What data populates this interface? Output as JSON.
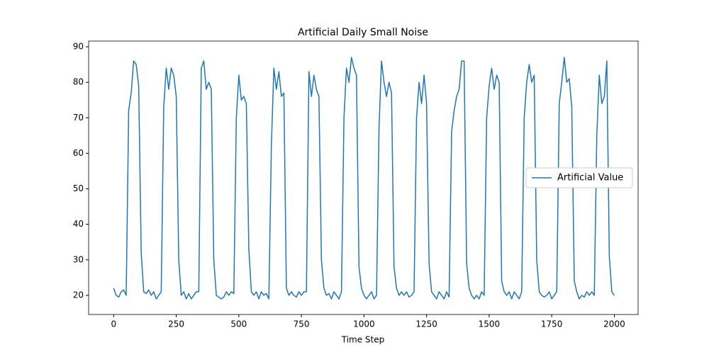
{
  "chart_data": {
    "type": "line",
    "title": "Artificial Daily Small Noise",
    "xlabel": "Time Step",
    "x": [
      0,
      10,
      20,
      30,
      40,
      50,
      60,
      70,
      80,
      90,
      100,
      110,
      120,
      130,
      140,
      150,
      160,
      170,
      180,
      190,
      200,
      210,
      220,
      230,
      240,
      250,
      260,
      270,
      280,
      290,
      300,
      310,
      320,
      330,
      340,
      350,
      360,
      370,
      380,
      390,
      400,
      410,
      420,
      430,
      440,
      450,
      460,
      470,
      480,
      490,
      500,
      510,
      520,
      530,
      540,
      550,
      560,
      570,
      580,
      590,
      600,
      610,
      620,
      630,
      640,
      650,
      660,
      670,
      680,
      690,
      700,
      710,
      720,
      730,
      740,
      750,
      760,
      770,
      780,
      790,
      800,
      810,
      820,
      830,
      840,
      850,
      860,
      870,
      880,
      890,
      900,
      910,
      920,
      930,
      940,
      950,
      960,
      970,
      980,
      990,
      1000,
      1010,
      1020,
      1030,
      1040,
      1050,
      1060,
      1070,
      1080,
      1090,
      1100,
      1110,
      1120,
      1130,
      1140,
      1150,
      1160,
      1170,
      1180,
      1190,
      1200,
      1210,
      1220,
      1230,
      1240,
      1250,
      1260,
      1270,
      1280,
      1290,
      1300,
      1310,
      1320,
      1330,
      1340,
      1350,
      1360,
      1370,
      1380,
      1390,
      1400,
      1410,
      1420,
      1430,
      1440,
      1450,
      1460,
      1470,
      1480,
      1490,
      1500,
      1510,
      1520,
      1530,
      1540,
      1550,
      1560,
      1570,
      1580,
      1590,
      1600,
      1610,
      1620,
      1630,
      1640,
      1650,
      1660,
      1670,
      1680,
      1690,
      1700,
      1710,
      1720,
      1730,
      1740,
      1750,
      1760,
      1770,
      1780,
      1790,
      1800,
      1810,
      1820,
      1830,
      1840,
      1850,
      1860,
      1870,
      1880,
      1890,
      1900,
      1910,
      1920,
      1930,
      1940,
      1950,
      1960,
      1970,
      1980,
      1990,
      2000
    ],
    "series": [
      {
        "name": "Artificial Value",
        "color": "#1f77b4",
        "values": [
          22,
          20,
          19.5,
          21,
          21.5,
          20,
          72,
          77,
          86,
          85,
          79,
          32,
          21,
          20.5,
          21.5,
          20,
          21,
          19,
          20,
          21,
          73,
          84,
          78,
          84,
          82,
          76,
          30,
          20,
          21,
          19,
          20.5,
          19,
          20,
          21,
          21,
          84,
          86,
          78,
          80,
          78,
          30,
          20,
          19.5,
          19,
          19.5,
          21,
          20,
          21,
          20.5,
          70,
          82,
          75,
          76,
          74,
          33,
          21,
          20,
          21,
          19,
          21,
          20,
          20.5,
          19,
          62,
          84,
          78,
          83,
          76,
          77,
          22,
          20,
          21,
          20,
          19.5,
          21,
          20,
          21,
          21,
          83,
          76,
          82,
          78,
          76,
          30,
          22,
          20,
          20.5,
          19,
          21,
          20,
          19,
          21,
          70,
          84,
          80,
          87,
          84,
          82,
          28,
          22,
          20,
          19,
          20,
          21,
          19,
          20,
          67,
          86,
          80,
          76,
          80,
          77,
          28,
          22,
          20,
          21,
          20,
          21,
          19.5,
          20,
          21,
          70,
          80,
          74,
          82,
          74,
          29,
          21,
          20,
          19,
          21,
          20,
          19,
          21,
          19.5,
          66,
          72,
          76,
          78,
          86,
          86,
          29,
          22,
          20,
          19,
          20,
          19,
          21,
          20,
          70,
          79,
          84,
          78,
          82,
          80,
          24,
          21,
          20,
          21,
          19,
          21,
          20,
          19,
          21,
          70,
          80,
          85,
          80,
          82,
          30,
          21,
          20,
          19.5,
          20,
          21,
          19,
          20,
          21,
          74,
          80,
          87,
          80,
          81,
          73,
          24,
          21,
          19,
          20,
          19.5,
          21,
          20,
          21,
          20,
          65,
          82,
          74,
          76,
          86,
          31,
          21,
          20
        ]
      }
    ],
    "xlim": [
      -100,
      2095
    ],
    "ylim": [
      14.6,
      91.6
    ],
    "xticks": [
      0,
      250,
      500,
      750,
      1000,
      1250,
      1500,
      1750,
      2000
    ],
    "yticks": [
      20,
      30,
      40,
      50,
      60,
      70,
      80,
      90
    ],
    "legend": "center right"
  }
}
